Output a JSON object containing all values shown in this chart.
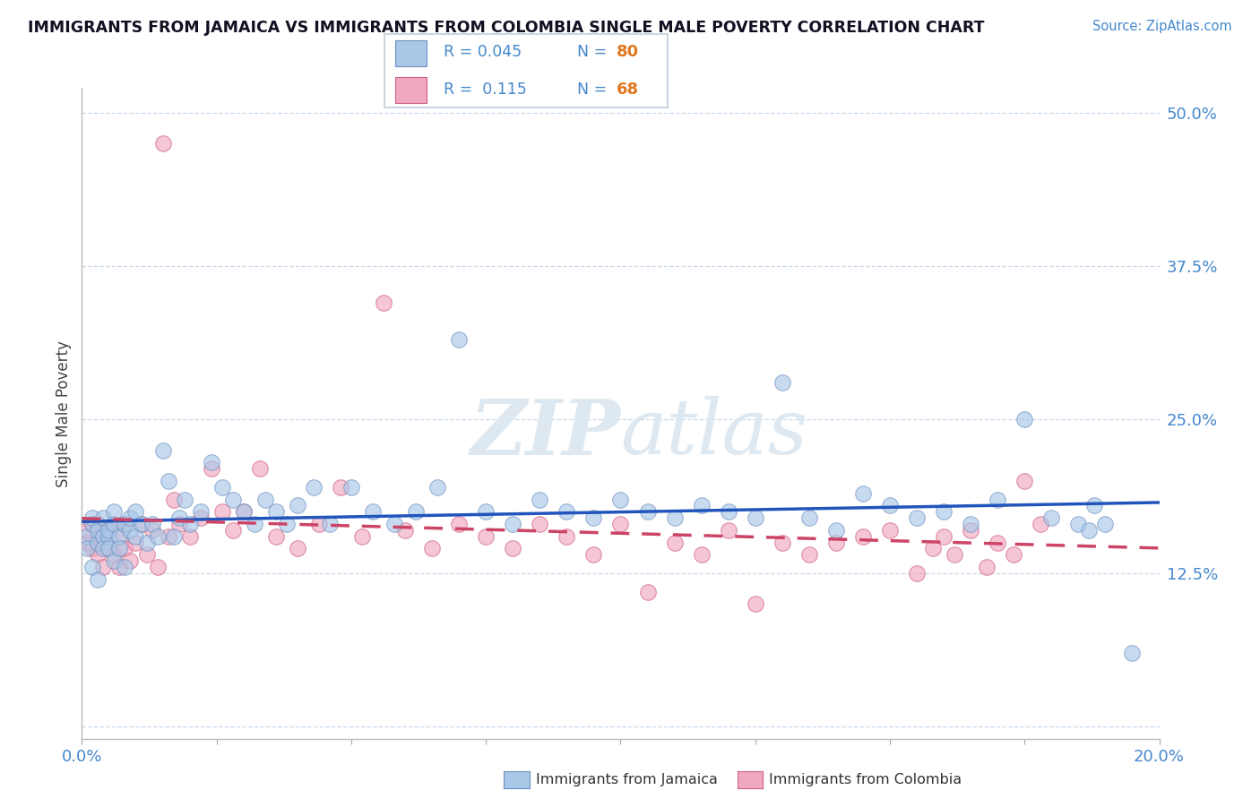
{
  "title": "IMMIGRANTS FROM JAMAICA VS IMMIGRANTS FROM COLOMBIA SINGLE MALE POVERTY CORRELATION CHART",
  "source": "Source: ZipAtlas.com",
  "ylabel": "Single Male Poverty",
  "xlim": [
    0.0,
    0.2
  ],
  "ylim": [
    -0.01,
    0.52
  ],
  "yticks": [
    0.0,
    0.125,
    0.25,
    0.375,
    0.5
  ],
  "ytick_labels": [
    "",
    "12.5%",
    "25.0%",
    "37.5%",
    "50.0%"
  ],
  "xticks": [
    0.0,
    0.025,
    0.05,
    0.075,
    0.1,
    0.125,
    0.15,
    0.175,
    0.2
  ],
  "xtick_labels": [
    "0.0%",
    "",
    "",
    "",
    "",
    "",
    "",
    "",
    "20.0%"
  ],
  "jamaica_R": 0.045,
  "jamaica_N": 80,
  "colombia_R": 0.115,
  "colombia_N": 68,
  "jamaica_color": "#a8c8e8",
  "colombia_color": "#f0a8c0",
  "jamaica_edge_color": "#7090c0",
  "colombia_edge_color": "#d06080",
  "jamaica_line_color": "#2255bb",
  "colombia_line_color": "#cc4466",
  "background_color": "#ffffff",
  "grid_color": "#c8d8ea",
  "axis_label_color": "#4488cc",
  "title_color": "#111122",
  "watermark_color": "#dde8f0",
  "legend_border_color": "#c0cdd8",
  "jamaica_x": [
    0.001,
    0.001,
    0.002,
    0.002,
    0.002,
    0.003,
    0.003,
    0.003,
    0.004,
    0.004,
    0.004,
    0.005,
    0.005,
    0.005,
    0.006,
    0.006,
    0.006,
    0.007,
    0.007,
    0.008,
    0.008,
    0.009,
    0.009,
    0.01,
    0.01,
    0.011,
    0.012,
    0.013,
    0.014,
    0.015,
    0.016,
    0.017,
    0.018,
    0.019,
    0.02,
    0.022,
    0.024,
    0.026,
    0.028,
    0.03,
    0.032,
    0.034,
    0.036,
    0.038,
    0.04,
    0.043,
    0.046,
    0.05,
    0.054,
    0.058,
    0.062,
    0.066,
    0.07,
    0.075,
    0.08,
    0.085,
    0.09,
    0.095,
    0.1,
    0.105,
    0.11,
    0.115,
    0.12,
    0.125,
    0.13,
    0.135,
    0.14,
    0.145,
    0.15,
    0.155,
    0.16,
    0.165,
    0.17,
    0.175,
    0.18,
    0.185,
    0.187,
    0.188,
    0.19,
    0.195
  ],
  "jamaica_y": [
    0.155,
    0.145,
    0.165,
    0.13,
    0.17,
    0.15,
    0.16,
    0.12,
    0.155,
    0.145,
    0.17,
    0.155,
    0.145,
    0.16,
    0.165,
    0.135,
    0.175,
    0.155,
    0.145,
    0.165,
    0.13,
    0.16,
    0.17,
    0.155,
    0.175,
    0.165,
    0.15,
    0.165,
    0.155,
    0.225,
    0.2,
    0.155,
    0.17,
    0.185,
    0.165,
    0.175,
    0.215,
    0.195,
    0.185,
    0.175,
    0.165,
    0.185,
    0.175,
    0.165,
    0.18,
    0.195,
    0.165,
    0.195,
    0.175,
    0.165,
    0.175,
    0.195,
    0.315,
    0.175,
    0.165,
    0.185,
    0.175,
    0.17,
    0.185,
    0.175,
    0.17,
    0.18,
    0.175,
    0.17,
    0.28,
    0.17,
    0.16,
    0.19,
    0.18,
    0.17,
    0.175,
    0.165,
    0.185,
    0.25,
    0.17,
    0.165,
    0.16,
    0.18,
    0.165,
    0.06
  ],
  "colombia_x": [
    0.001,
    0.001,
    0.002,
    0.002,
    0.003,
    0.003,
    0.004,
    0.004,
    0.005,
    0.005,
    0.006,
    0.006,
    0.007,
    0.007,
    0.008,
    0.008,
    0.009,
    0.01,
    0.011,
    0.012,
    0.013,
    0.014,
    0.015,
    0.016,
    0.017,
    0.018,
    0.02,
    0.022,
    0.024,
    0.026,
    0.028,
    0.03,
    0.033,
    0.036,
    0.04,
    0.044,
    0.048,
    0.052,
    0.056,
    0.06,
    0.065,
    0.07,
    0.075,
    0.08,
    0.085,
    0.09,
    0.095,
    0.1,
    0.105,
    0.11,
    0.115,
    0.12,
    0.125,
    0.13,
    0.135,
    0.14,
    0.145,
    0.15,
    0.155,
    0.158,
    0.16,
    0.162,
    0.165,
    0.168,
    0.17,
    0.173,
    0.175,
    0.178
  ],
  "colombia_y": [
    0.15,
    0.16,
    0.145,
    0.165,
    0.14,
    0.165,
    0.13,
    0.155,
    0.145,
    0.16,
    0.14,
    0.165,
    0.13,
    0.155,
    0.145,
    0.165,
    0.135,
    0.15,
    0.165,
    0.14,
    0.16,
    0.13,
    0.475,
    0.155,
    0.185,
    0.165,
    0.155,
    0.17,
    0.21,
    0.175,
    0.16,
    0.175,
    0.21,
    0.155,
    0.145,
    0.165,
    0.195,
    0.155,
    0.345,
    0.16,
    0.145,
    0.165,
    0.155,
    0.145,
    0.165,
    0.155,
    0.14,
    0.165,
    0.11,
    0.15,
    0.14,
    0.16,
    0.1,
    0.15,
    0.14,
    0.15,
    0.155,
    0.16,
    0.125,
    0.145,
    0.155,
    0.14,
    0.16,
    0.13,
    0.15,
    0.14,
    0.2,
    0.165
  ]
}
